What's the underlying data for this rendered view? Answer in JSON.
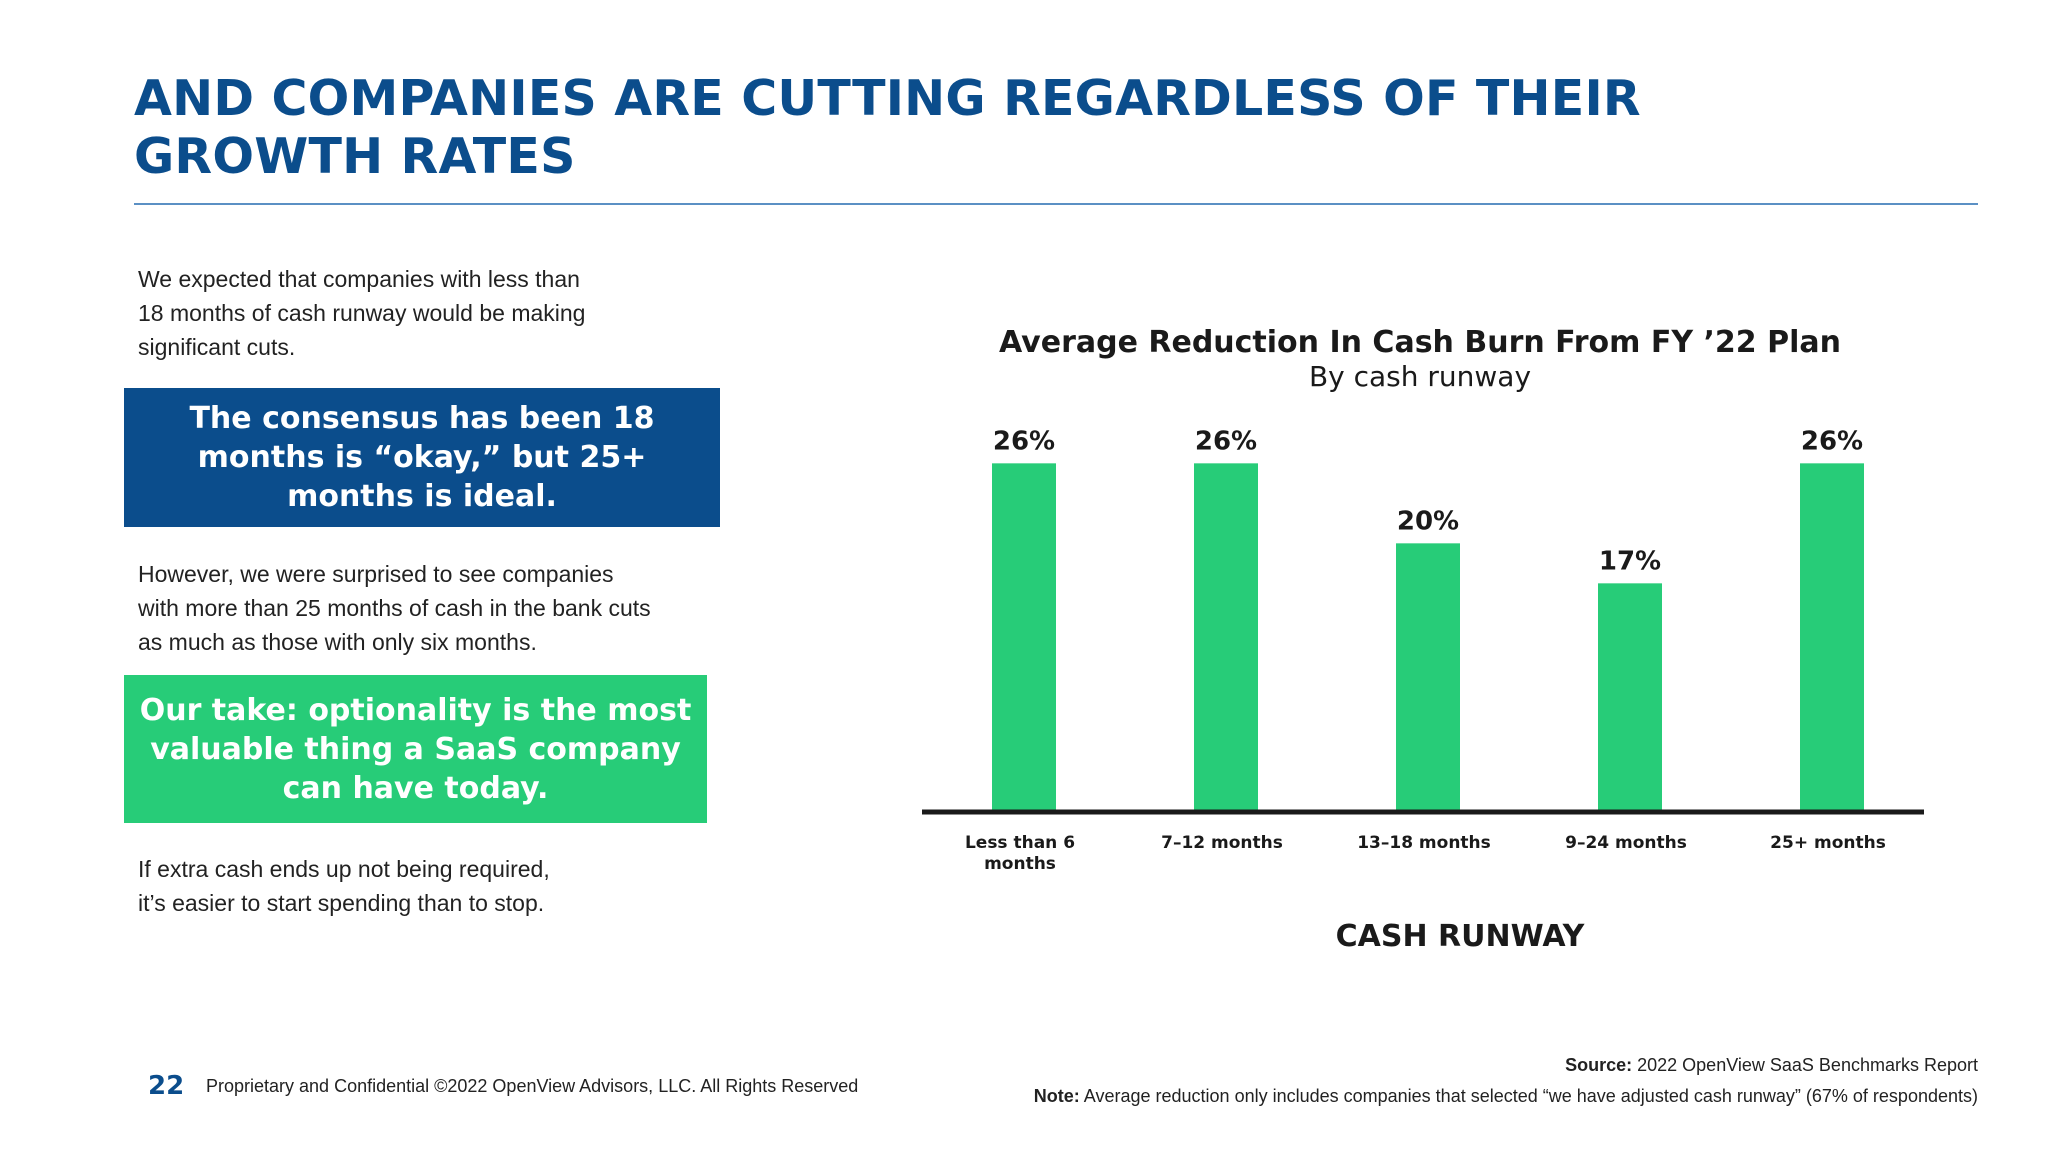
{
  "slide": {
    "title_lines": [
      "AND COMPANIES ARE CUTTING REGARDLESS OF THEIR",
      "GROWTH RATES"
    ],
    "paragraph1": [
      "We expected that companies with less than",
      "18 months of cash runway would be making",
      "significant cuts."
    ],
    "callout1": [
      "The consensus has been 18",
      "months is “okay,” but 25+",
      "months is ideal."
    ],
    "paragraph2": [
      "However, we were surprised to see companies",
      "with more than 25 months of cash in the bank cuts",
      "as much as those with only six months."
    ],
    "callout2": [
      "Our take: optionality is the most",
      "valuable thing a SaaS company",
      "can have today."
    ],
    "paragraph3": [
      "If extra cash ends up not being required,",
      "it’s easier to start spending than to stop."
    ],
    "page_number": "22",
    "footer": "Proprietary and Confidential ©2022 OpenView Advisors, LLC. All Rights Reserved",
    "source_label": "Source:",
    "source_text": " 2022 OpenView SaaS Benchmarks Report",
    "note_label": "Note:",
    "note_text": " Average reduction only includes companies that selected “we have adjusted cash runway” (67% of respondents)",
    "colors": {
      "navy": "#0b4d8c",
      "green": "#27cc78"
    }
  },
  "chart_data": {
    "type": "bar",
    "title": "Average Reduction In Cash Burn From FY ’22 Plan",
    "subtitle": "By cash runway",
    "xlabel": "CASH RUNWAY",
    "ylabel": "",
    "categories": [
      [
        "Less than 6",
        "months"
      ],
      [
        "7–12 months"
      ],
      [
        "13–18 months"
      ],
      [
        "9–24 months"
      ],
      [
        "25+ months"
      ]
    ],
    "values": [
      26,
      26,
      20,
      17,
      26
    ],
    "value_labels": [
      "26%",
      "26%",
      "20%",
      "17%",
      "26%"
    ],
    "ylim": [
      0,
      30
    ],
    "grid": false,
    "legend": "none",
    "bar_color": "#27cc78"
  }
}
